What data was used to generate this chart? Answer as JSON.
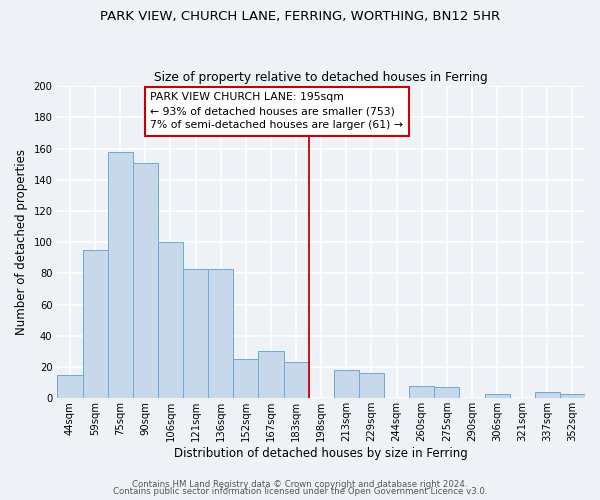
{
  "title1": "PARK VIEW, CHURCH LANE, FERRING, WORTHING, BN12 5HR",
  "title2": "Size of property relative to detached houses in Ferring",
  "xlabel": "Distribution of detached houses by size in Ferring",
  "ylabel": "Number of detached properties",
  "categories": [
    "44sqm",
    "59sqm",
    "75sqm",
    "90sqm",
    "106sqm",
    "121sqm",
    "136sqm",
    "152sqm",
    "167sqm",
    "183sqm",
    "198sqm",
    "213sqm",
    "229sqm",
    "244sqm",
    "260sqm",
    "275sqm",
    "290sqm",
    "306sqm",
    "321sqm",
    "337sqm",
    "352sqm"
  ],
  "values": [
    15,
    95,
    158,
    151,
    100,
    83,
    83,
    25,
    30,
    23,
    0,
    18,
    16,
    0,
    8,
    7,
    0,
    3,
    0,
    4,
    3
  ],
  "bar_color": "#c8d8eb",
  "bar_edge_color": "#6aaad4",
  "ylim": [
    0,
    200
  ],
  "yticks": [
    0,
    20,
    40,
    60,
    80,
    100,
    120,
    140,
    160,
    180,
    200
  ],
  "vline_color": "#cc0000",
  "annotation_title": "PARK VIEW CHURCH LANE: 195sqm",
  "annotation_line1": "← 93% of detached houses are smaller (753)",
  "annotation_line2": "7% of semi-detached houses are larger (61) →",
  "annotation_box_color": "#cc0000",
  "footer1": "Contains HM Land Registry data © Crown copyright and database right 2024.",
  "footer2": "Contains public sector information licensed under the Open Government Licence v3.0.",
  "bg_color": "#eef2f7",
  "grid_color": "#ffffff",
  "title1_fontsize": 9.5,
  "title2_fontsize": 8.8,
  "xlabel_fontsize": 8.5,
  "ylabel_fontsize": 8.5,
  "tick_fontsize": 7.2,
  "annotation_fontsize": 7.8,
  "footer_fontsize": 6.2
}
